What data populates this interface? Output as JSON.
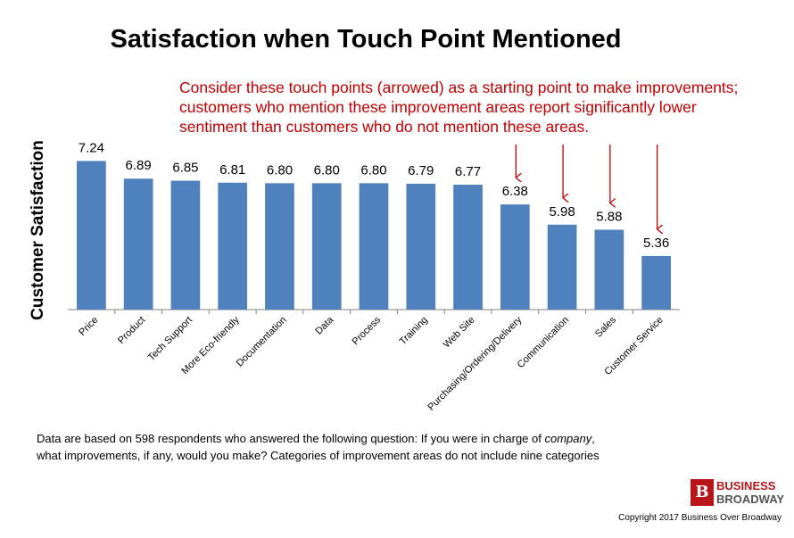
{
  "chart_data": {
    "type": "bar",
    "title": "Satisfaction when Touch Point Mentioned",
    "ylabel": "Customer Satisfaction",
    "xlabel": "",
    "ylim": [
      4.3,
      7.6
    ],
    "grid": false,
    "categories": [
      "Price",
      "Product",
      "Tech Support",
      "More Eco-friendly",
      "Documentation",
      "Data",
      "Process",
      "Training",
      "Web Site",
      "Purchasing/Ordering/Delivery",
      "Communication",
      "Sales",
      "Customer Service"
    ],
    "values": [
      7.24,
      6.89,
      6.85,
      6.81,
      6.8,
      6.8,
      6.8,
      6.79,
      6.77,
      6.38,
      5.98,
      5.88,
      5.36
    ],
    "data_labels": [
      "7.24",
      "6.89",
      "6.85",
      "6.81",
      "6.80",
      "6.80",
      "6.80",
      "6.79",
      "6.77",
      "6.38",
      "5.98",
      "5.88",
      "5.36"
    ],
    "arrowed_categories": [
      "Purchasing/Ordering/Delivery",
      "Communication",
      "Sales",
      "Customer Service"
    ],
    "bar_color": "#4f81bd",
    "annotation_color": "#c00000",
    "annotation": [
      "Consider these touch points (arrowed) as a starting point to make improvements;",
      "customers who mention these improvement areas report significantly lower",
      "sentiment than customers who do not mention these areas."
    ]
  },
  "footnote": {
    "line1_pre": "Data are based on 598 respondents who answered the following question: If you were in charge of ",
    "line1_italic": "company",
    "line1_post": ",",
    "line2": "what improvements, if any, would you make? Categories of improvement areas do not include nine categories"
  },
  "logo": {
    "mark": "B",
    "line1": "BUSINESS",
    "line2": "BROADWAY",
    "color": "#b8161b"
  },
  "copyright": "Copyright 2017 Business Over Broadway"
}
